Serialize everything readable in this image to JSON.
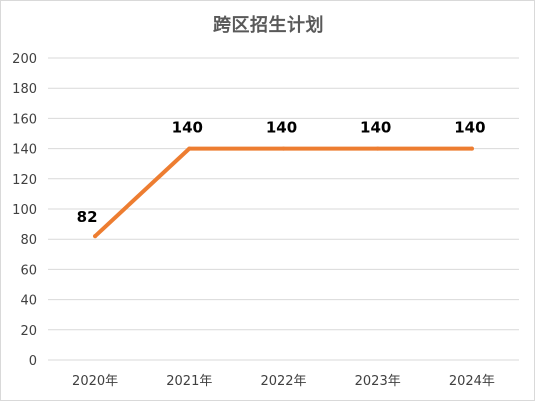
{
  "chart_data": {
    "type": "line",
    "title": "跨区招生计划",
    "categories": [
      "2020年",
      "2021年",
      "2022年",
      "2023年",
      "2024年"
    ],
    "series": [
      {
        "values": [
          82,
          140,
          140,
          140,
          140
        ],
        "color": "#ED7D31"
      }
    ],
    "data_labels": [
      "82",
      "140",
      "140",
      "140",
      "140"
    ],
    "y_ticks": [
      "0",
      "20",
      "40",
      "60",
      "80",
      "100",
      "120",
      "140",
      "160",
      "180",
      "200"
    ],
    "ylim": [
      0,
      200
    ],
    "grid": true,
    "legend": "none",
    "colors": {
      "line": "#ED7D31",
      "grid": "#d9d9d9",
      "title": "#595959",
      "tick": "#404040"
    }
  }
}
